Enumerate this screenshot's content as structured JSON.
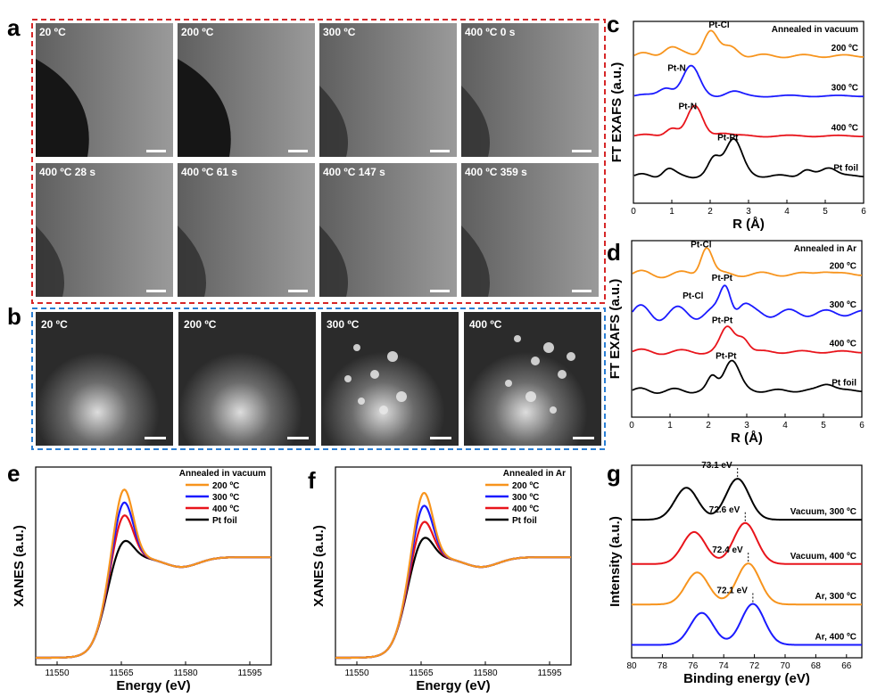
{
  "panel_letters": {
    "a": "a",
    "b": "b",
    "c": "c",
    "d": "d",
    "e": "e",
    "f": "f",
    "g": "g"
  },
  "panel_a": {
    "labels": [
      "20 ºC",
      "200 ºC",
      "300 ºC",
      "400 ºC   0 s",
      "400 ºC   28 s",
      "400 ºC   61 s",
      "400 ºC   147 s",
      "400 ºC   359 s"
    ],
    "frame_color": "#d62728"
  },
  "panel_b": {
    "labels": [
      "20 ºC",
      "200 ºC",
      "300 ºC",
      "400 ºC"
    ],
    "frame_color": "#2a7fd4"
  },
  "colors": {
    "orange": "#f7941d",
    "blue": "#1a1aff",
    "red": "#e8141b",
    "black": "#000000",
    "green": "#2ca05a",
    "blue_label": "#1f6fd0"
  },
  "chart_data": [
    {
      "id": "c",
      "type": "line",
      "annotation": "Annealed in vacuum",
      "xlabel": "R (Å)",
      "ylabel": "FT EXAFS (a.u.)",
      "xlim": [
        0,
        6
      ],
      "xticks": [
        "0",
        "1",
        "2",
        "3",
        "4",
        "5",
        "6"
      ],
      "series": [
        {
          "name": "200 ºC",
          "color": "orange",
          "peak_label": "Pt-Cl",
          "peak_x": 2.0
        },
        {
          "name": "300 ºC",
          "color": "blue",
          "peak_label": "Pt-N",
          "peak_x": 1.5
        },
        {
          "name": "400 ºC",
          "color": "red",
          "peak_label": "Pt-N",
          "peak_x": 1.6
        },
        {
          "name": "Pt foil",
          "color": "black",
          "peak_label": "Pt-Pt",
          "peak_x": 2.6
        }
      ]
    },
    {
      "id": "d",
      "type": "line",
      "annotation": "Annealed in Ar",
      "xlabel": "R (Å)",
      "ylabel": "FT EXAFS (a.u.)",
      "xlim": [
        0,
        6
      ],
      "xticks": [
        "0",
        "1",
        "2",
        "3",
        "4",
        "5",
        "6"
      ],
      "series": [
        {
          "name": "200 ºC",
          "color": "orange",
          "peak_label": "Pt-Cl",
          "peak_x": 1.95
        },
        {
          "name": "300 ºC",
          "color": "blue",
          "peak_label": "Pt-Pt",
          "peak_x": 2.45,
          "extra_label": "Pt-Cl"
        },
        {
          "name": "400 ºC",
          "color": "red",
          "peak_label": "Pt-Pt",
          "peak_x": 2.5
        },
        {
          "name": "Pt foil",
          "color": "black",
          "peak_label": "Pt-Pt",
          "peak_x": 2.6
        }
      ]
    },
    {
      "id": "e",
      "type": "line",
      "legend_title": "Annealed in vacuum",
      "xlabel": "Energy (eV)",
      "ylabel": "XANES (a.u.)",
      "xlim": [
        11545,
        11600
      ],
      "xticks": [
        "11550",
        "11565",
        "11580",
        "11595"
      ],
      "series": [
        {
          "name": "200 ºC",
          "color": "orange",
          "white_line": 1.0
        },
        {
          "name": "300 ºC",
          "color": "blue",
          "white_line": 0.92
        },
        {
          "name": "400 ºC",
          "color": "red",
          "white_line": 0.84
        },
        {
          "name": "Pt foil",
          "color": "black",
          "white_line": 0.68
        }
      ]
    },
    {
      "id": "f",
      "type": "line",
      "legend_title": "Annealed in Ar",
      "xlabel": "Energy (eV)",
      "ylabel": "XANES (a.u.)",
      "xlim": [
        11545,
        11600
      ],
      "xticks": [
        "11550",
        "11565",
        "11580",
        "11595"
      ],
      "series": [
        {
          "name": "200 ºC",
          "color": "orange",
          "white_line": 0.98
        },
        {
          "name": "300 ºC",
          "color": "blue",
          "white_line": 0.9
        },
        {
          "name": "400 ºC",
          "color": "red",
          "white_line": 0.8
        },
        {
          "name": "Pt foil",
          "color": "black",
          "white_line": 0.7
        }
      ]
    },
    {
      "id": "g",
      "type": "line",
      "xlabel": "Binding energy (eV)",
      "ylabel": "Intensity (a.u.)",
      "xlim": [
        80,
        65
      ],
      "xticks": [
        "80",
        "78",
        "76",
        "74",
        "72",
        "70",
        "68",
        "66"
      ],
      "series": [
        {
          "name": "Vacuum, 300 ºC",
          "color": "black",
          "peak_label": "73.1 eV",
          "peak_ev": 73.1
        },
        {
          "name": "Vacuum, 400 ºC",
          "color": "red",
          "peak_label": "72.6 eV",
          "peak_ev": 72.6
        },
        {
          "name": "Ar, 300 ºC",
          "color": "orange",
          "label_color": "green",
          "peak_label": "72.4 eV",
          "peak_ev": 72.4
        },
        {
          "name": "Ar, 400 ºC",
          "color": "blue",
          "label_color": "blue_label",
          "peak_label": "72.1 eV",
          "peak_ev": 72.1
        }
      ]
    }
  ]
}
